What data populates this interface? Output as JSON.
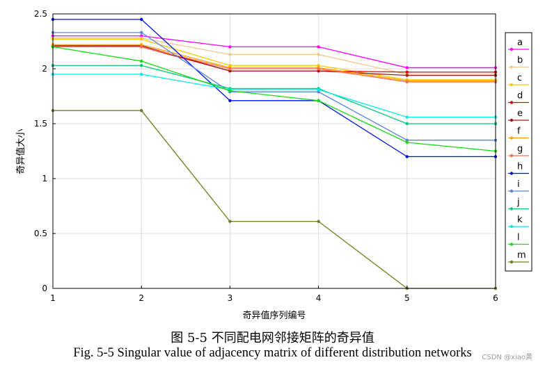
{
  "chart_data": {
    "type": "line",
    "title": "",
    "xlabel": "奇异值序列编号",
    "ylabel": "奇异值大小",
    "x": [
      1,
      2,
      3,
      4,
      5,
      6
    ],
    "xlim": [
      1,
      6
    ],
    "ylim": [
      0,
      2.5
    ],
    "xticks": [
      "1",
      "2",
      "3",
      "4",
      "5",
      "6"
    ],
    "yticks": [
      "0",
      "0.5",
      "1",
      "1.5",
      "2",
      "2.5"
    ],
    "grid": true,
    "legend_position": "right",
    "series": [
      {
        "name": "a",
        "color": "#ff00ff",
        "values": [
          2.3,
          2.3,
          2.2,
          2.2,
          2.01,
          2.01
        ]
      },
      {
        "name": "b",
        "color": "#f0c88c",
        "values": [
          2.28,
          2.28,
          2.13,
          2.13,
          1.95,
          1.95
        ]
      },
      {
        "name": "c",
        "color": "#f5c800",
        "values": [
          2.27,
          2.27,
          2.03,
          2.03,
          1.9,
          1.9
        ]
      },
      {
        "name": "d",
        "color": "#dd0000",
        "values": [
          2.2,
          2.2,
          1.98,
          1.98,
          1.97,
          1.97
        ]
      },
      {
        "name": "e",
        "color": "#a01818",
        "values": [
          2.21,
          2.21,
          1.98,
          1.98,
          1.94,
          1.94
        ]
      },
      {
        "name": "f",
        "color": "#ffa000",
        "values": [
          2.22,
          2.22,
          2.01,
          2.01,
          1.89,
          1.89
        ]
      },
      {
        "name": "g",
        "color": "#ff6e50",
        "values": [
          2.2,
          2.2,
          2.0,
          2.0,
          1.88,
          1.88
        ]
      },
      {
        "name": "h",
        "color": "#0010dc",
        "values": [
          2.45,
          2.45,
          1.71,
          1.71,
          1.2,
          1.2
        ]
      },
      {
        "name": "i",
        "color": "#5a82dc",
        "values": [
          2.33,
          2.33,
          1.79,
          1.79,
          1.35,
          1.35
        ]
      },
      {
        "name": "j",
        "color": "#00c878",
        "values": [
          2.03,
          2.03,
          1.82,
          1.82,
          1.5,
          1.5
        ]
      },
      {
        "name": "k",
        "color": "#00ebeb",
        "values": [
          1.95,
          1.95,
          1.81,
          1.81,
          1.56,
          1.56
        ]
      },
      {
        "name": "l",
        "color": "#14dc14",
        "values": [
          2.2,
          2.07,
          1.8,
          1.71,
          1.33,
          1.25
        ]
      },
      {
        "name": "m",
        "color": "#6e7d1e",
        "values": [
          1.62,
          1.62,
          0.61,
          0.61,
          0.0,
          0.0
        ]
      }
    ]
  },
  "caption": {
    "chinese": "图 5-5  不同配电网邻接矩阵的奇异值",
    "english": "Fig. 5-5 Singular value of adjacency matrix of different distribution networks"
  },
  "watermark": "CSDN @xiao黄"
}
